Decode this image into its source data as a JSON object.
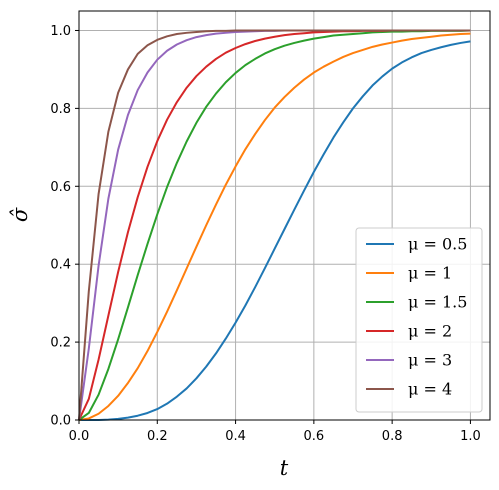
{
  "chart_data": {
    "type": "line",
    "xlabel": "t",
    "ylabel": "σ̂",
    "xlim": [
      0,
      1.05
    ],
    "ylim": [
      0,
      1.05
    ],
    "xticks": [
      "0.0",
      "0.2",
      "0.4",
      "0.6",
      "0.8",
      "1.0"
    ],
    "yticks": [
      "0.0",
      "0.2",
      "0.4",
      "0.6",
      "0.8",
      "1.0"
    ],
    "grid": true,
    "legend_position": "lower-right",
    "x": [
      0,
      0.025,
      0.05,
      0.075,
      0.1,
      0.125,
      0.15,
      0.175,
      0.2,
      0.225,
      0.25,
      0.275,
      0.3,
      0.325,
      0.35,
      0.375,
      0.4,
      0.425,
      0.45,
      0.475,
      0.5,
      0.525,
      0.55,
      0.575,
      0.6,
      0.625,
      0.65,
      0.675,
      0.7,
      0.725,
      0.75,
      0.775,
      0.8,
      0.825,
      0.85,
      0.875,
      0.9,
      0.925,
      0.95,
      0.975,
      1.0
    ],
    "series": [
      {
        "name": "μ = 0.5",
        "color": "#1f77b4",
        "values": [
          0,
          0,
          0,
          0.001,
          0.003,
          0.006,
          0.011,
          0.018,
          0.028,
          0.042,
          0.06,
          0.081,
          0.107,
          0.137,
          0.171,
          0.209,
          0.25,
          0.294,
          0.341,
          0.39,
          0.44,
          0.49,
          0.54,
          0.589,
          0.637,
          0.682,
          0.725,
          0.764,
          0.8,
          0.831,
          0.859,
          0.882,
          0.902,
          0.918,
          0.931,
          0.942,
          0.95,
          0.957,
          0.963,
          0.968,
          0.972
        ]
      },
      {
        "name": "μ = 1",
        "color": "#ff7f0e",
        "values": [
          0,
          0.004,
          0.016,
          0.036,
          0.062,
          0.095,
          0.133,
          0.177,
          0.226,
          0.278,
          0.333,
          0.389,
          0.445,
          0.5,
          0.553,
          0.604,
          0.651,
          0.695,
          0.734,
          0.77,
          0.802,
          0.829,
          0.853,
          0.874,
          0.892,
          0.907,
          0.92,
          0.932,
          0.942,
          0.95,
          0.958,
          0.964,
          0.969,
          0.974,
          0.978,
          0.981,
          0.984,
          0.987,
          0.989,
          0.991,
          0.992
        ]
      },
      {
        "name": "μ = 1.5",
        "color": "#2ca02c",
        "values": [
          0,
          0.018,
          0.065,
          0.131,
          0.207,
          0.289,
          0.372,
          0.452,
          0.528,
          0.598,
          0.66,
          0.715,
          0.763,
          0.804,
          0.838,
          0.867,
          0.891,
          0.911,
          0.927,
          0.941,
          0.952,
          0.961,
          0.968,
          0.974,
          0.979,
          0.983,
          0.987,
          0.989,
          0.991,
          0.993,
          0.995,
          0.996,
          0.997,
          0.997,
          0.998,
          0.998,
          0.999,
          0.999,
          0.999,
          0.999,
          1.0
        ]
      },
      {
        "name": "μ = 2",
        "color": "#d62728",
        "values": [
          0,
          0.054,
          0.155,
          0.268,
          0.38,
          0.482,
          0.572,
          0.65,
          0.716,
          0.771,
          0.816,
          0.853,
          0.883,
          0.907,
          0.927,
          0.943,
          0.955,
          0.965,
          0.973,
          0.979,
          0.984,
          0.988,
          0.991,
          0.993,
          0.995,
          0.996,
          0.997,
          0.998,
          0.998,
          0.999,
          0.999,
          0.999,
          1.0,
          1.0,
          1.0,
          1.0,
          1.0,
          1.0,
          1.0,
          1.0,
          1.0
        ]
      },
      {
        "name": "μ = 3",
        "color": "#9467bd",
        "values": [
          0,
          0.183,
          0.396,
          0.568,
          0.694,
          0.783,
          0.847,
          0.892,
          0.925,
          0.948,
          0.964,
          0.975,
          0.983,
          0.988,
          0.992,
          0.994,
          0.996,
          0.997,
          0.998,
          0.999,
          0.999,
          1.0,
          1.0,
          1.0,
          1.0,
          1.0,
          1.0,
          1.0,
          1.0,
          1.0,
          1.0,
          1.0,
          1.0,
          1.0,
          1.0,
          1.0,
          1.0,
          1.0,
          1.0,
          1.0,
          1.0
        ]
      },
      {
        "name": "μ = 4",
        "color": "#8c564b",
        "values": [
          0,
          0.33,
          0.58,
          0.74,
          0.84,
          0.9,
          0.94,
          0.962,
          0.976,
          0.985,
          0.991,
          0.994,
          0.996,
          0.998,
          0.999,
          0.999,
          1.0,
          1.0,
          1.0,
          1.0,
          1.0,
          1.0,
          1.0,
          1.0,
          1.0,
          1.0,
          1.0,
          1.0,
          1.0,
          1.0,
          1.0,
          1.0,
          1.0,
          1.0,
          1.0,
          1.0,
          1.0,
          1.0,
          1.0,
          1.0,
          1.0
        ]
      }
    ]
  }
}
